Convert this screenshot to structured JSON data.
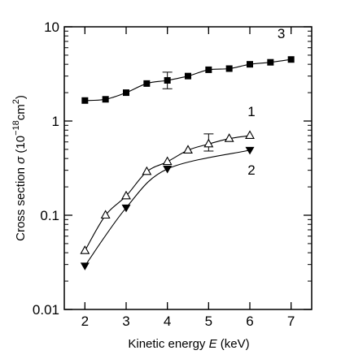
{
  "chart_data": {
    "type": "line",
    "xlabel": {
      "prefix": "Kinetic energy ",
      "var": "E",
      "suffix": " (keV)"
    },
    "ylabel": {
      "prefix": "Cross section ",
      "var": "σ",
      "unit_open": " (10",
      "exp1": "−18",
      "unit_mid": "cm",
      "exp2": "2",
      "unit_close": ")"
    },
    "xlim": [
      1.5,
      7.5
    ],
    "ylim": [
      0.01,
      10
    ],
    "yscale": "log",
    "x_ticks": [
      2,
      3,
      4,
      5,
      6,
      7
    ],
    "x_tick_labels": [
      "2",
      "3",
      "4",
      "5",
      "6",
      "7"
    ],
    "y_ticks": [
      0.01,
      0.1,
      1,
      10
    ],
    "y_tick_labels": [
      "0.01",
      "0.1",
      "1",
      "10"
    ],
    "grid": false,
    "series": [
      {
        "name": "1",
        "marker": "open-triangle-up",
        "x": [
          2,
          2.5,
          3,
          3.5,
          4,
          4.5,
          5,
          5.5,
          6
        ],
        "y": [
          0.042,
          0.1,
          0.16,
          0.29,
          0.37,
          0.49,
          0.57,
          0.65,
          0.7
        ],
        "error_bars": [
          {
            "x": 5,
            "low": 0.48,
            "high": 0.73
          }
        ]
      },
      {
        "name": "2",
        "marker": "filled-triangle-down",
        "x": [
          2,
          3,
          4,
          6
        ],
        "y": [
          0.029,
          0.12,
          0.31,
          0.49
        ],
        "error_bars": []
      },
      {
        "name": "3",
        "marker": "filled-square",
        "x": [
          2,
          2.5,
          3,
          3.5,
          4,
          4.5,
          5,
          5.5,
          6,
          6.5,
          7
        ],
        "y": [
          1.65,
          1.7,
          2.0,
          2.5,
          2.7,
          3.0,
          3.5,
          3.6,
          4.0,
          4.2,
          4.5
        ],
        "error_bars": [
          {
            "x": 4,
            "low": 2.2,
            "high": 3.3
          }
        ]
      }
    ]
  }
}
